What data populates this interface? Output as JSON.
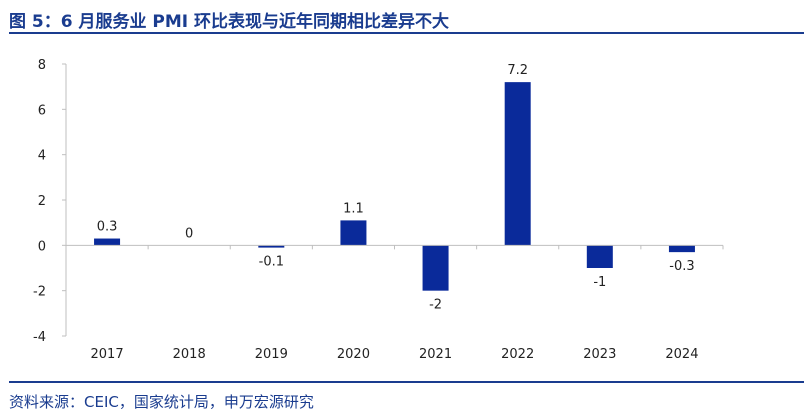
{
  "header": {
    "title": "图 5：6 月服务业 PMI 环比表现与近年同期相比差异不大"
  },
  "footer": {
    "source": "资料来源：CEIC，国家统计局，申万宏源研究"
  },
  "colors": {
    "accent": "#1a3c8f",
    "bar": "#0a2a9a",
    "axis": "#bfbfbf"
  },
  "chart_data": {
    "type": "bar",
    "categories": [
      "2017",
      "2018",
      "2019",
      "2020",
      "2021",
      "2022",
      "2023",
      "2024"
    ],
    "values": [
      0.3,
      0,
      -0.1,
      1.1,
      -2,
      7.2,
      -1,
      -0.3
    ],
    "data_labels": [
      "0.3",
      "0",
      "-0.1",
      "1.1",
      "-2",
      "7.2",
      "-1",
      "-0.3"
    ],
    "ylim": [
      -4,
      8
    ],
    "yticks": [
      -4,
      -2,
      0,
      2,
      4,
      6,
      8
    ],
    "xlabel": "",
    "ylabel": "",
    "grid": false,
    "legend": "none"
  }
}
